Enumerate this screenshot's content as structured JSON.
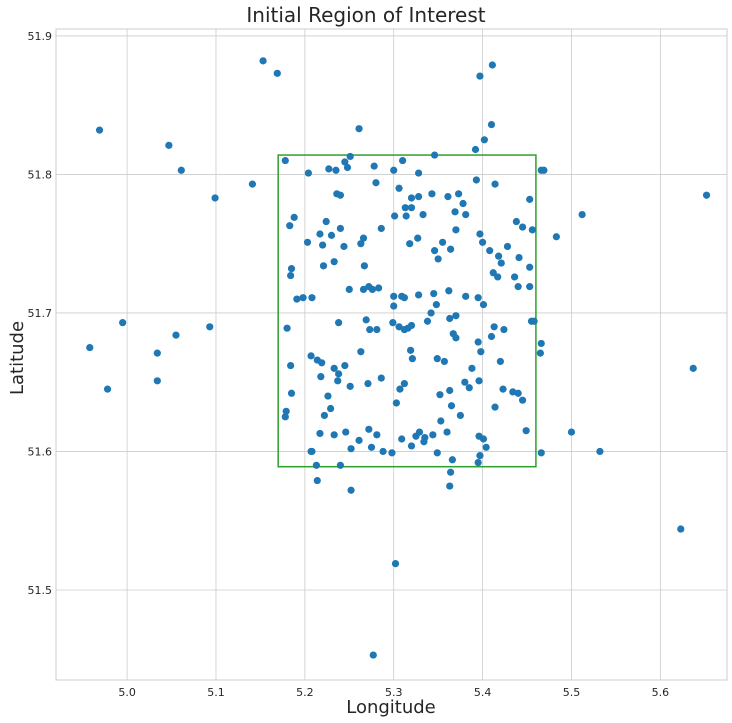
{
  "chart_data": {
    "type": "scatter",
    "title": "Initial Region of Interest",
    "xlabel": "Longitude",
    "ylabel": "Latitude",
    "xlim": [
      4.92,
      5.675
    ],
    "ylim": [
      51.435,
      51.905
    ],
    "xticks": [
      5.0,
      5.1,
      5.2,
      5.3,
      5.4,
      5.5,
      5.6
    ],
    "xtick_labels": [
      "5.0",
      "5.1",
      "5.2",
      "5.3",
      "5.4",
      "5.5",
      "5.6"
    ],
    "yticks": [
      51.5,
      51.6,
      51.7,
      51.8,
      51.9
    ],
    "ytick_labels": [
      "51.5",
      "51.6",
      "51.7",
      "51.8",
      "51.9"
    ],
    "grid": true,
    "point_color": "#1f77b4",
    "region": {
      "color": "#2ca02c",
      "x_min": 5.17,
      "x_max": 5.46,
      "y_min": 51.589,
      "y_max": 51.814
    },
    "series": [
      {
        "points": [
          [
            5.153,
            51.882
          ],
          [
            5.169,
            51.873
          ],
          [
            5.397,
            51.871
          ],
          [
            5.411,
            51.879
          ],
          [
            4.969,
            51.832
          ],
          [
            5.047,
            51.821
          ],
          [
            5.261,
            51.833
          ],
          [
            5.41,
            51.836
          ],
          [
            5.402,
            51.825
          ],
          [
            5.061,
            51.803
          ],
          [
            5.099,
            51.783
          ],
          [
            5.141,
            51.793
          ],
          [
            5.178,
            51.81
          ],
          [
            5.204,
            51.801
          ],
          [
            5.227,
            51.804
          ],
          [
            5.235,
            51.803
          ],
          [
            5.245,
            51.809
          ],
          [
            5.251,
            51.813
          ],
          [
            5.248,
            51.805
          ],
          [
            5.278,
            51.806
          ],
          [
            5.31,
            51.81
          ],
          [
            5.3,
            51.803
          ],
          [
            5.346,
            51.814
          ],
          [
            5.328,
            51.801
          ],
          [
            5.392,
            51.818
          ],
          [
            5.414,
            51.793
          ],
          [
            5.466,
            51.803
          ],
          [
            5.469,
            51.803
          ],
          [
            5.652,
            51.785
          ],
          [
            5.512,
            51.771
          ],
          [
            5.236,
            51.786
          ],
          [
            5.24,
            51.785
          ],
          [
            5.28,
            51.794
          ],
          [
            5.306,
            51.79
          ],
          [
            5.32,
            51.783
          ],
          [
            5.343,
            51.786
          ],
          [
            5.361,
            51.784
          ],
          [
            5.393,
            51.796
          ],
          [
            5.373,
            51.786
          ],
          [
            5.378,
            51.779
          ],
          [
            5.381,
            51.771
          ],
          [
            5.369,
            51.773
          ],
          [
            5.453,
            51.782
          ],
          [
            5.183,
            51.763
          ],
          [
            5.188,
            51.769
          ],
          [
            5.224,
            51.766
          ],
          [
            5.217,
            51.757
          ],
          [
            5.23,
            51.756
          ],
          [
            5.244,
            51.748
          ],
          [
            5.203,
            51.751
          ],
          [
            5.22,
            51.749
          ],
          [
            5.24,
            51.761
          ],
          [
            5.263,
            51.75
          ],
          [
            5.266,
            51.754
          ],
          [
            5.286,
            51.761
          ],
          [
            5.301,
            51.77
          ],
          [
            5.313,
            51.776
          ],
          [
            5.32,
            51.776
          ],
          [
            5.314,
            51.77
          ],
          [
            5.328,
            51.784
          ],
          [
            5.333,
            51.771
          ],
          [
            5.318,
            51.75
          ],
          [
            5.327,
            51.754
          ],
          [
            5.346,
            51.745
          ],
          [
            5.355,
            51.751
          ],
          [
            5.35,
            51.739
          ],
          [
            5.364,
            51.746
          ],
          [
            5.37,
            51.76
          ],
          [
            5.397,
            51.757
          ],
          [
            5.4,
            51.751
          ],
          [
            5.408,
            51.745
          ],
          [
            5.418,
            51.741
          ],
          [
            5.421,
            51.736
          ],
          [
            5.417,
            51.726
          ],
          [
            5.428,
            51.748
          ],
          [
            5.438,
            51.766
          ],
          [
            5.445,
            51.762
          ],
          [
            5.456,
            51.76
          ],
          [
            5.441,
            51.74
          ],
          [
            5.436,
            51.726
          ],
          [
            5.453,
            51.733
          ],
          [
            5.453,
            51.719
          ],
          [
            5.483,
            51.755
          ],
          [
            5.184,
            51.727
          ],
          [
            5.185,
            51.732
          ],
          [
            5.221,
            51.734
          ],
          [
            5.233,
            51.737
          ],
          [
            5.25,
            51.717
          ],
          [
            5.267,
            51.734
          ],
          [
            5.266,
            51.717
          ],
          [
            5.272,
            51.719
          ],
          [
            5.276,
            51.717
          ],
          [
            5.283,
            51.718
          ],
          [
            5.3,
            51.712
          ],
          [
            5.3,
            51.705
          ],
          [
            5.309,
            51.712
          ],
          [
            5.312,
            51.711
          ],
          [
            5.328,
            51.713
          ],
          [
            5.345,
            51.714
          ],
          [
            5.362,
            51.716
          ],
          [
            5.363,
            51.696
          ],
          [
            5.37,
            51.698
          ],
          [
            5.381,
            51.712
          ],
          [
            5.395,
            51.711
          ],
          [
            5.412,
            51.729
          ],
          [
            5.44,
            51.719
          ],
          [
            5.401,
            51.706
          ],
          [
            5.455,
            51.694
          ],
          [
            5.458,
            51.694
          ],
          [
            5.466,
            51.678
          ],
          [
            5.465,
            51.671
          ],
          [
            5.191,
            51.71
          ],
          [
            5.198,
            51.711
          ],
          [
            5.208,
            51.711
          ],
          [
            5.18,
            51.689
          ],
          [
            5.238,
            51.693
          ],
          [
            5.269,
            51.695
          ],
          [
            5.273,
            51.688
          ],
          [
            5.281,
            51.688
          ],
          [
            5.299,
            51.693
          ],
          [
            5.306,
            51.69
          ],
          [
            5.316,
            51.689
          ],
          [
            5.312,
            51.688
          ],
          [
            5.32,
            51.691
          ],
          [
            5.319,
            51.673
          ],
          [
            5.321,
            51.667
          ],
          [
            5.338,
            51.694
          ],
          [
            5.342,
            51.7
          ],
          [
            5.348,
            51.706
          ],
          [
            5.367,
            51.685
          ],
          [
            5.37,
            51.682
          ],
          [
            5.395,
            51.679
          ],
          [
            5.398,
            51.672
          ],
          [
            5.413,
            51.69
          ],
          [
            5.424,
            51.688
          ],
          [
            5.42,
            51.665
          ],
          [
            5.41,
            51.683
          ],
          [
            4.958,
            51.675
          ],
          [
            4.995,
            51.693
          ],
          [
            5.055,
            51.684
          ],
          [
            5.093,
            51.69
          ],
          [
            5.034,
            51.671
          ],
          [
            4.978,
            51.645
          ],
          [
            5.034,
            51.651
          ],
          [
            5.184,
            51.662
          ],
          [
            5.207,
            51.669
          ],
          [
            5.214,
            51.666
          ],
          [
            5.219,
            51.664
          ],
          [
            5.218,
            51.654
          ],
          [
            5.233,
            51.66
          ],
          [
            5.238,
            51.656
          ],
          [
            5.237,
            51.651
          ],
          [
            5.245,
            51.662
          ],
          [
            5.251,
            51.647
          ],
          [
            5.263,
            51.672
          ],
          [
            5.271,
            51.649
          ],
          [
            5.286,
            51.653
          ],
          [
            5.303,
            51.635
          ],
          [
            5.307,
            51.645
          ],
          [
            5.312,
            51.649
          ],
          [
            5.349,
            51.667
          ],
          [
            5.357,
            51.665
          ],
          [
            5.363,
            51.644
          ],
          [
            5.352,
            51.641
          ],
          [
            5.365,
            51.633
          ],
          [
            5.38,
            51.65
          ],
          [
            5.385,
            51.646
          ],
          [
            5.396,
            51.651
          ],
          [
            5.388,
            51.66
          ],
          [
            5.414,
            51.632
          ],
          [
            5.423,
            51.645
          ],
          [
            5.434,
            51.643
          ],
          [
            5.44,
            51.642
          ],
          [
            5.445,
            51.637
          ],
          [
            5.449,
            51.615
          ],
          [
            5.637,
            51.66
          ],
          [
            5.185,
            51.642
          ],
          [
            5.179,
            51.629
          ],
          [
            5.178,
            51.625
          ],
          [
            5.217,
            51.613
          ],
          [
            5.222,
            51.626
          ],
          [
            5.229,
            51.631
          ],
          [
            5.226,
            51.64
          ],
          [
            5.233,
            51.612
          ],
          [
            5.246,
            51.614
          ],
          [
            5.252,
            51.602
          ],
          [
            5.261,
            51.608
          ],
          [
            5.272,
            51.616
          ],
          [
            5.281,
            51.612
          ],
          [
            5.275,
            51.603
          ],
          [
            5.288,
            51.6
          ],
          [
            5.298,
            51.599
          ],
          [
            5.309,
            51.609
          ],
          [
            5.32,
            51.604
          ],
          [
            5.325,
            51.611
          ],
          [
            5.329,
            51.614
          ],
          [
            5.335,
            51.61
          ],
          [
            5.334,
            51.607
          ],
          [
            5.344,
            51.612
          ],
          [
            5.353,
            51.622
          ],
          [
            5.36,
            51.614
          ],
          [
            5.366,
            51.594
          ],
          [
            5.375,
            51.626
          ],
          [
            5.396,
            51.611
          ],
          [
            5.401,
            51.609
          ],
          [
            5.404,
            51.603
          ],
          [
            5.397,
            51.597
          ],
          [
            5.395,
            51.592
          ],
          [
            5.364,
            51.585
          ],
          [
            5.349,
            51.599
          ],
          [
            5.207,
            51.6
          ],
          [
            5.208,
            51.6
          ],
          [
            5.213,
            51.59
          ],
          [
            5.24,
            51.59
          ],
          [
            5.214,
            51.579
          ],
          [
            5.252,
            51.572
          ],
          [
            5.363,
            51.575
          ],
          [
            5.466,
            51.599
          ],
          [
            5.5,
            51.614
          ],
          [
            5.532,
            51.6
          ],
          [
            5.623,
            51.544
          ],
          [
            5.302,
            51.519
          ],
          [
            5.277,
            51.453
          ]
        ]
      }
    ]
  }
}
